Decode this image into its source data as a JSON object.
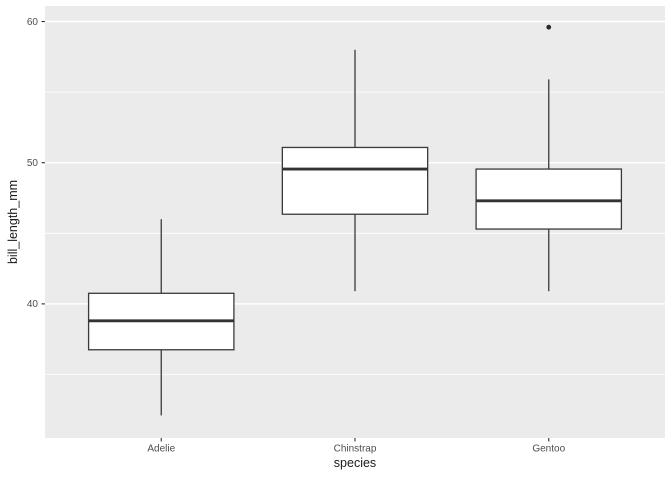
{
  "colors": {
    "page_bg": "#FFFFFF",
    "panel_bg": "#EBEBEB",
    "grid_major": "#FFFFFF",
    "grid_minor": "#FFFFFF",
    "box_stroke": "#3A3A3A",
    "box_fill": "#FFFFFF",
    "median_stroke": "#333333",
    "outlier_fill": "#2B2B2B",
    "tick_mark": "#333333",
    "axis_text": "#4D4D4D",
    "axis_title": "#1A1A1A"
  },
  "chart_data": {
    "type": "boxplot",
    "title": "",
    "xlabel": "species",
    "ylabel": "bill_length_mm",
    "categories": [
      "Adelie",
      "Chinstrap",
      "Gentoo"
    ],
    "ylim": [
      30.5,
      61.1
    ],
    "y_major_ticks": [
      40,
      50,
      60
    ],
    "y_minor_ticks": [
      35,
      45,
      55
    ],
    "grid": true,
    "legend": "none",
    "boxes": [
      {
        "category": "Adelie",
        "whisker_low": 32.1,
        "q1": 36.75,
        "median": 38.8,
        "q3": 40.75,
        "whisker_high": 46.0,
        "outliers": []
      },
      {
        "category": "Chinstrap",
        "whisker_low": 40.9,
        "q1": 46.35,
        "median": 49.55,
        "q3": 51.08,
        "whisker_high": 58.0,
        "outliers": []
      },
      {
        "category": "Gentoo",
        "whisker_low": 40.9,
        "q1": 45.3,
        "median": 47.3,
        "q3": 49.55,
        "whisker_high": 55.9,
        "outliers": [
          59.6
        ]
      }
    ]
  }
}
